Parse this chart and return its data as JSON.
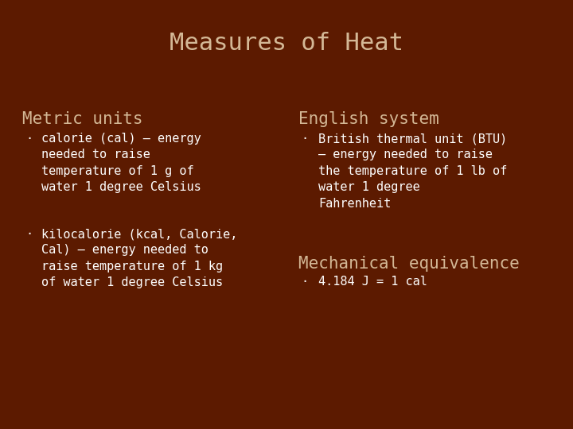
{
  "title": "Measures of Heat",
  "bg_color": "#5C1A00",
  "title_color": "#D4B896",
  "heading_color": "#D4B896",
  "body_color": "#FFFFFF",
  "title_fontsize": 22,
  "heading_fontsize": 15,
  "body_fontsize": 11,
  "left_heading": "Metric units",
  "right_heading": "English system",
  "mech_heading": "Mechanical equivalence",
  "left_bullet1": "calorie (cal) – energy\nneeded to raise\ntemperature of 1 g of\nwater 1 degree Celsius",
  "left_bullet2": "kilocalorie (kcal, Calorie,\nCal) – energy needed to\nraise temperature of 1 kg\nof water 1 degree Celsius",
  "right_bullet": "British thermal unit (BTU)\n– energy needed to raise\nthe temperature of 1 lb of\nwater 1 degree\nFahrenheit",
  "mech_bullet": "4.184 J = 1 cal"
}
